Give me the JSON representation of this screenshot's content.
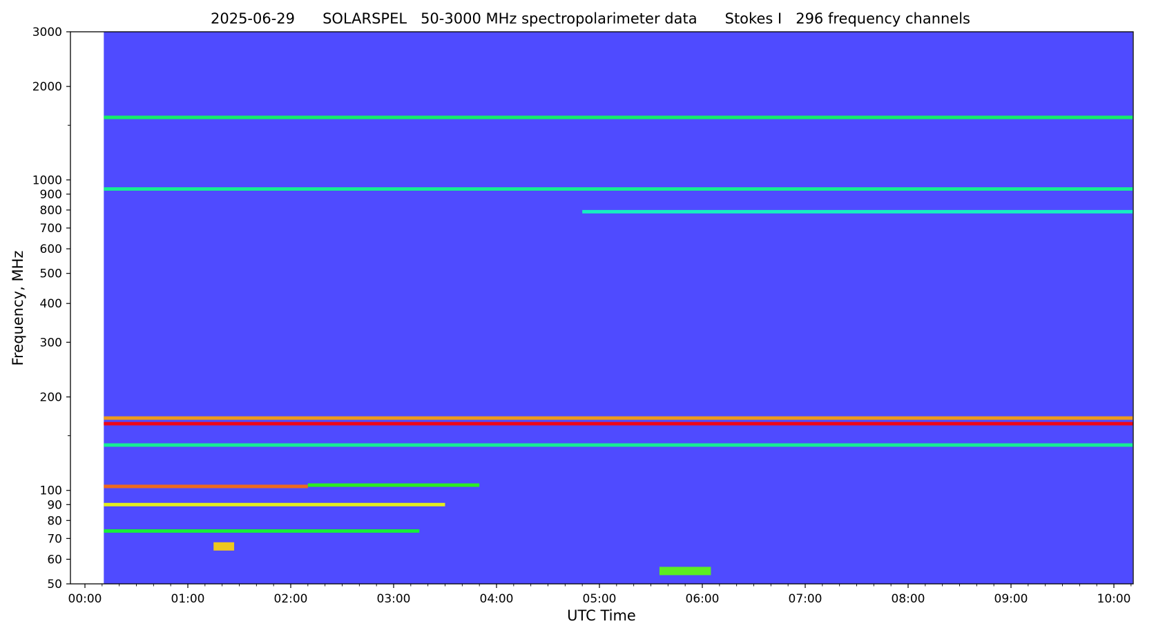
{
  "chart_data": {
    "type": "heatmap",
    "title": "2025-06-29      SOLARSPEL   50-3000 MHz spectropolarimeter data      Stokes I   296 frequency channels",
    "xlabel": "UTC Time",
    "ylabel": "Frequency, MHz",
    "x_range": [
      "00:00",
      "10:11"
    ],
    "x_ticks": [
      "00:00",
      "01:00",
      "02:00",
      "03:00",
      "04:00",
      "05:00",
      "06:00",
      "07:00",
      "08:00",
      "09:00",
      "10:00"
    ],
    "y_scale": "log",
    "y_range": [
      50,
      3000
    ],
    "y_ticks": [
      50,
      60,
      70,
      80,
      90,
      100,
      200,
      300,
      400,
      500,
      600,
      700,
      800,
      900,
      1000,
      2000,
      3000
    ],
    "y_minor_ticks": [
      150,
      1500
    ],
    "colormap": "rainbow",
    "background_color": "#4f4bff",
    "no_data_column": [
      "00:00",
      "00:11"
    ],
    "grid": false,
    "features": [
      {
        "label": "persistent interference",
        "freq_mhz": 164,
        "start": "00:00",
        "end": "10:11",
        "intensity": 1.0
      },
      {
        "label": "persistent interference",
        "freq_mhz": 171,
        "start": "00:00",
        "end": "10:11",
        "intensity": 0.85
      },
      {
        "label": "band",
        "freq_mhz": 103,
        "start": "00:00",
        "end": "02:10",
        "intensity": 0.9
      },
      {
        "label": "band",
        "freq_mhz": 104,
        "start": "02:10",
        "end": "03:50",
        "intensity": 0.55
      },
      {
        "label": "band",
        "freq_mhz": 90,
        "start": "00:00",
        "end": "03:30",
        "intensity": 0.75
      },
      {
        "label": "band",
        "freq_mhz": 74,
        "start": "00:00",
        "end": "03:15",
        "intensity": 0.5
      },
      {
        "label": "band",
        "freq_mhz": 1590,
        "start": "00:00",
        "end": "10:11",
        "intensity": 0.45
      },
      {
        "label": "band",
        "freq_mhz": 935,
        "start": "00:00",
        "end": "10:11",
        "intensity": 0.4
      },
      {
        "label": "band",
        "freq_mhz": 790,
        "start": "04:50",
        "end": "10:11",
        "intensity": 0.35
      },
      {
        "label": "band",
        "freq_mhz": 140,
        "start": "00:00",
        "end": "10:11",
        "intensity": 0.4
      },
      {
        "label": "burst",
        "freq_mhz": 55,
        "start": "05:35",
        "end": "06:05",
        "intensity": 0.6
      },
      {
        "label": "burst",
        "freq_mhz": 66,
        "start": "01:15",
        "end": "01:27",
        "intensity": 0.8
      }
    ]
  }
}
